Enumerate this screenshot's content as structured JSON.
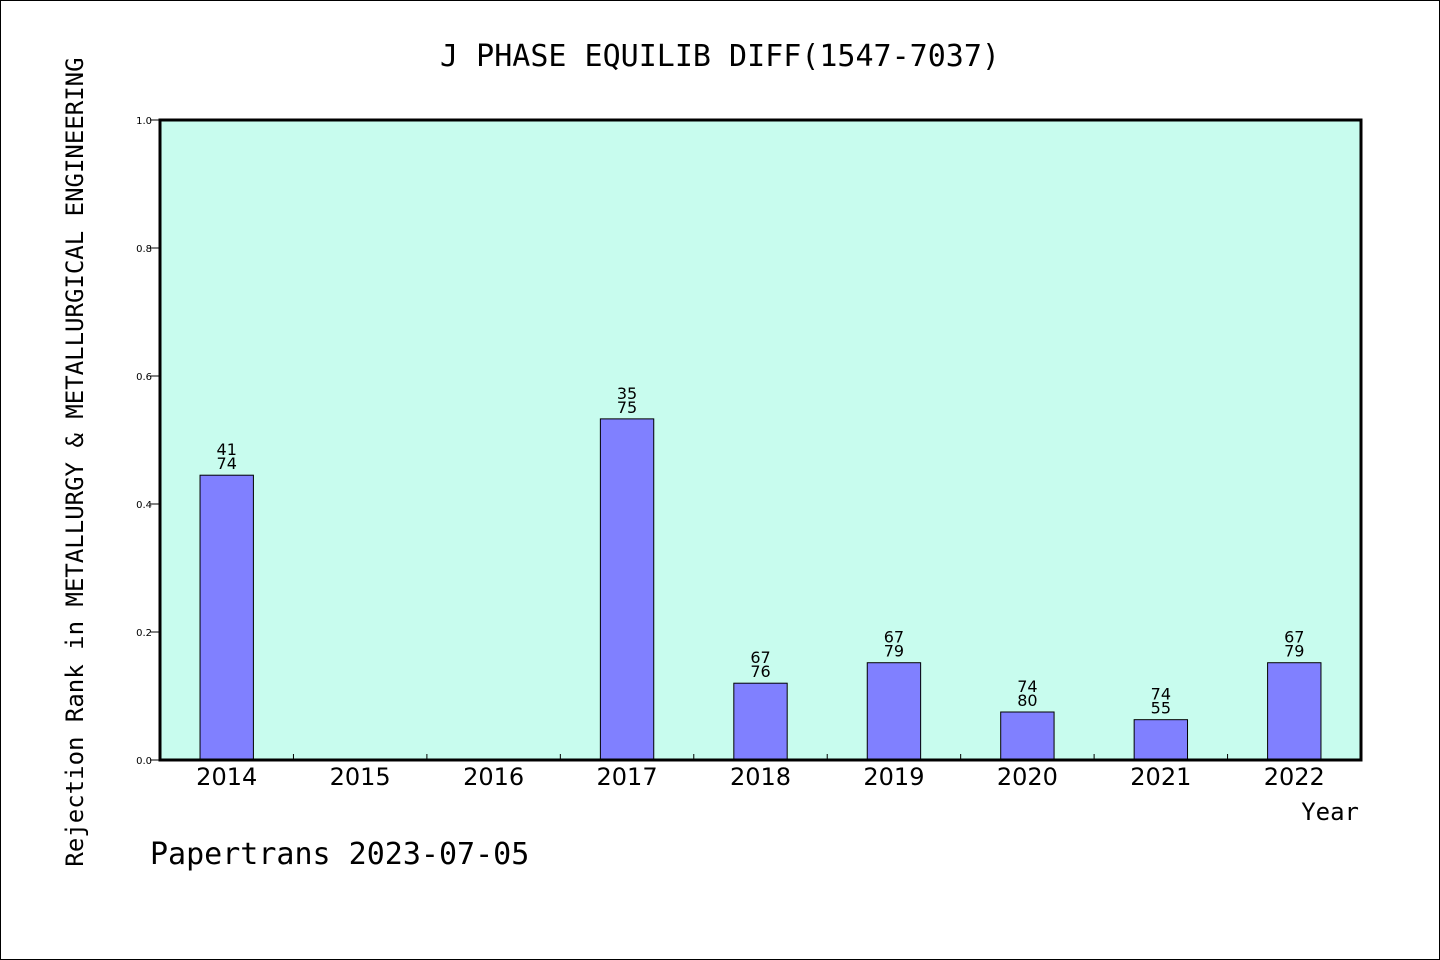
{
  "footer": "Papertrans 2023-07-05",
  "colors": {
    "plot_background": "#c8fcee",
    "bar_fill": "#8080ff",
    "bar_stroke": "#000000",
    "axis": "#000000"
  },
  "chart_data": {
    "type": "bar",
    "title": "J PHASE EQUILIB DIFF(1547-7037)",
    "xlabel": "Year",
    "ylabel": "Rejection Rank in METALLURGY & METALLURGICAL ENGINEERING",
    "ylim": [
      0,
      1.0
    ],
    "yticks": [
      "0.0",
      "0.2",
      "0.4",
      "0.6",
      "0.8",
      "1.0"
    ],
    "grid": false,
    "categories": [
      "2014",
      "2015",
      "2016",
      "2017",
      "2018",
      "2019",
      "2020",
      "2021",
      "2022"
    ],
    "values": [
      0.445,
      null,
      null,
      0.533,
      0.12,
      0.152,
      0.075,
      0.063,
      0.152
    ],
    "labels_top": [
      "41",
      "",
      "",
      "35",
      "67",
      "67",
      "74",
      "74",
      "67"
    ],
    "labels_bottom": [
      "74",
      "",
      "",
      "75",
      "76",
      "79",
      "80",
      "55",
      "79"
    ]
  }
}
